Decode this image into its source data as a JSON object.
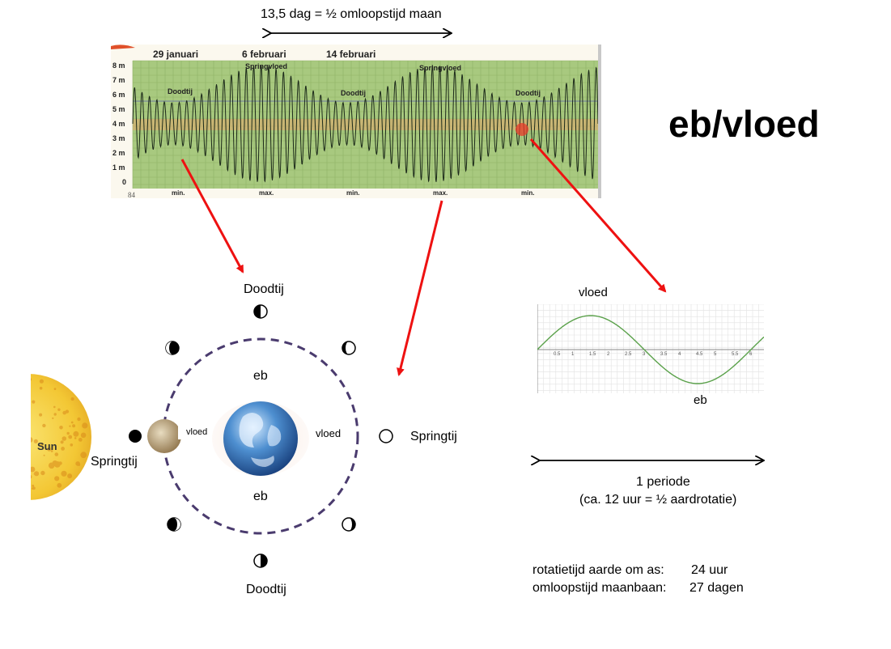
{
  "title": "eb/vloed",
  "top_span_label": "13,5 dag = ½ omloopstijd maan",
  "tide_chart": {
    "date_labels": [
      "29 januari",
      "6 februari",
      "14 februari"
    ],
    "peak_labels": [
      "Springvloed",
      "Springvloed"
    ],
    "neap_labels": [
      "Doodtij",
      "Doodtij",
      "Doodtij"
    ],
    "y_ticks": [
      "8 m",
      "7 m",
      "6 m",
      "5 m",
      "4 m",
      "3 m",
      "2 m",
      "1 m",
      "0"
    ],
    "page_number": "84",
    "x_marks": [
      "min.",
      "max.",
      "min.",
      "max.",
      "min."
    ],
    "colors": {
      "background": "#a8c97f",
      "trace": "#1c2a1a",
      "mean_band": "#e9a36a",
      "highlight": "#e83a2a"
    }
  },
  "orbit_diagram": {
    "top_label": "Doodtij",
    "bottom_label": "Doodtij",
    "right_label": "Springtij",
    "left_label": "Springtij",
    "eb_top": "eb",
    "eb_bottom": "eb",
    "vloed_right": "vloed",
    "vloed_left": "vloed",
    "sun_label": "Sun",
    "colors": {
      "orbit": "#4a3b6e",
      "sun": "#f7d13a",
      "earth": "#2f6fb3"
    }
  },
  "sine_chart": {
    "crest_label": "vloed",
    "trough_label": "eb",
    "x_ticks": [
      "0.5",
      "1",
      "1.5",
      "2",
      "2.5",
      "3",
      "3.5",
      "4",
      "4.5",
      "5",
      "5.5",
      "6"
    ],
    "colors": {
      "curve": "#5aa14a",
      "grid": "#d8d8d8"
    }
  },
  "period": {
    "label": "1 periode",
    "note": "(ca. 12 uur = ½ aardrotatie)"
  },
  "facts": [
    {
      "label": "rotatietijd aarde om as:",
      "value": "24 uur"
    },
    {
      "label": "omloopstijd maanbaan:",
      "value": "27 dagen"
    }
  ],
  "arrow_color": "#ee1111"
}
